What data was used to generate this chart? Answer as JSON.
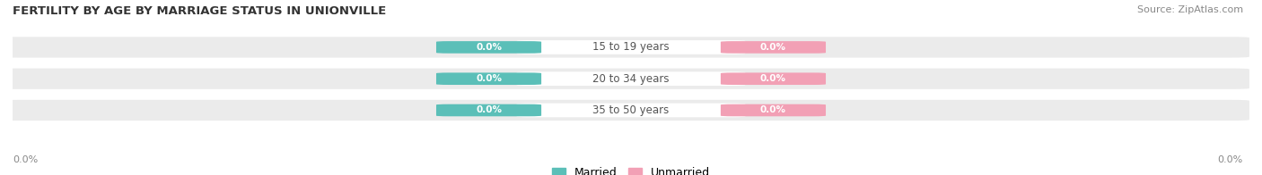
{
  "title": "FERTILITY BY AGE BY MARRIAGE STATUS IN UNIONVILLE",
  "source": "Source: ZipAtlas.com",
  "categories": [
    "15 to 19 years",
    "20 to 34 years",
    "35 to 50 years"
  ],
  "married_values": [
    0.0,
    0.0,
    0.0
  ],
  "unmarried_values": [
    0.0,
    0.0,
    0.0
  ],
  "married_color": "#5BBFB8",
  "unmarried_color": "#F2A0B5",
  "row_bg_color": "#EBEBEB",
  "center_label_bg": "#FFFFFF",
  "xlim": [
    -1.0,
    1.0
  ],
  "title_fontsize": 9.5,
  "source_fontsize": 8,
  "label_fontsize": 8.5,
  "axis_label_fontsize": 8,
  "legend_fontsize": 9,
  "value_fontsize": 7.5
}
